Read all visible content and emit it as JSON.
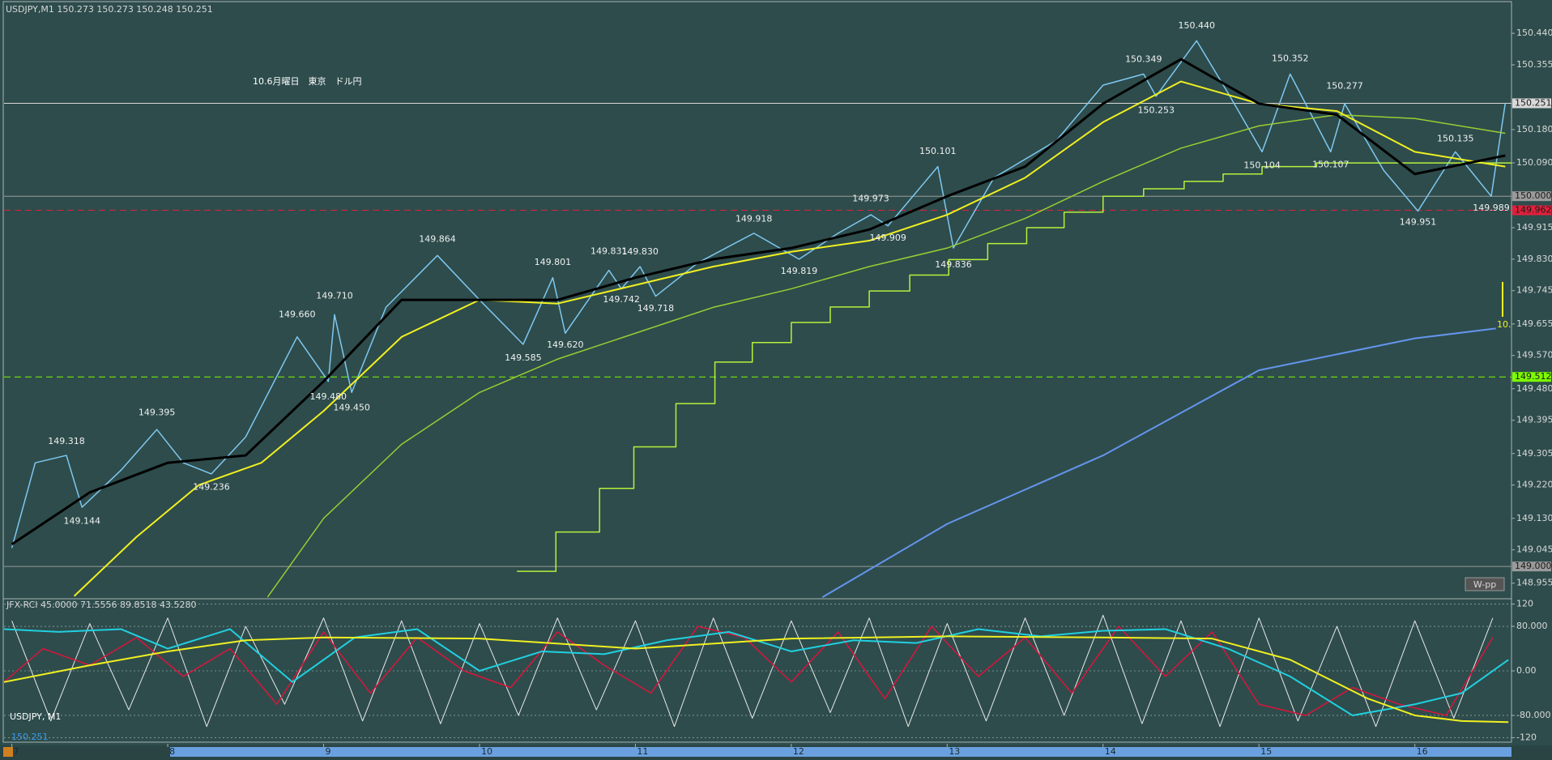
{
  "chart_data": [
    {
      "type": "line",
      "title": "10.6月曜日　東京　ドル円",
      "subtitle": "USDJPY,M1  150.273 150.273 150.248 150.251",
      "symbol_label": "USDJPY, M1",
      "last_price": 150.251,
      "pivot_label": "W-pp",
      "note": "10.",
      "xlim": [
        6.95,
        16.62
      ],
      "xticks": [
        7,
        8,
        9,
        10,
        11,
        12,
        13,
        14,
        15,
        16
      ],
      "ylim": [
        148.915,
        150.53
      ],
      "yticks": [
        {
          "value": 150.44,
          "label": "150.440"
        },
        150.355,
        {
          "value": 150.18,
          "label": "150.180"
        },
        {
          "value": 150.09,
          "label": "150.090"
        },
        149.915,
        {
          "value": 149.83,
          "label": "149.830"
        },
        149.745,
        149.655,
        {
          "value": 149.57,
          "label": "149.570"
        },
        {
          "value": 149.48,
          "label": "149.480"
        },
        149.395,
        149.305,
        {
          "value": 149.22,
          "label": "149.220"
        },
        {
          "value": 149.13,
          "label": "149.130"
        },
        149.045,
        148.955
      ],
      "hlines": [
        {
          "value": 150.251,
          "color": "#d8d8d8",
          "dash": false
        },
        {
          "value": 150,
          "label": "150.000",
          "color": "#9a9a9a",
          "dash": false
        },
        {
          "value": 149.962,
          "color": "#e0203c",
          "dash": true
        },
        {
          "value": 149.512,
          "color": "#7cfc00",
          "dash": true
        },
        {
          "value": 149,
          "label": "149.000",
          "color": "#9a9a9a",
          "dash": false
        }
      ],
      "series": [
        {
          "color": "#7ec8f0",
          "line_width": 1.5,
          "x": [
            7.0,
            7.15,
            7.35,
            7.45,
            7.7,
            7.93,
            8.1,
            8.28,
            8.5,
            8.83,
            9.03,
            9.07,
            9.18,
            9.4,
            9.73,
            10.0,
            10.28,
            10.47,
            10.55,
            10.83,
            10.91,
            11.03,
            11.13,
            11.4,
            11.76,
            12.05,
            12.3,
            12.51,
            12.62,
            12.94,
            13.04,
            13.3,
            13.7,
            14.0,
            14.26,
            14.34,
            14.6,
            14.8,
            15.02,
            15.2,
            15.46,
            15.55,
            15.8,
            16.02,
            16.26,
            16.49,
            16.58
          ],
          "values": [
            149.05,
            149.28,
            149.3,
            149.16,
            149.26,
            149.37,
            149.28,
            149.25,
            149.35,
            149.62,
            149.5,
            149.68,
            149.47,
            149.7,
            149.84,
            149.72,
            149.6,
            149.78,
            149.63,
            149.8,
            149.75,
            149.81,
            149.73,
            149.82,
            149.9,
            149.83,
            149.9,
            149.95,
            149.92,
            150.08,
            149.86,
            150.05,
            150.15,
            150.3,
            150.33,
            150.27,
            150.42,
            150.28,
            150.12,
            150.33,
            150.12,
            150.25,
            150.07,
            149.96,
            150.12,
            150.0,
            150.251
          ]
        },
        {
          "color": "#9acd32",
          "line_width": 1.5,
          "x": [
            8.64,
            9.0,
            9.5,
            10.0,
            10.5,
            11.0,
            11.5,
            12.0,
            12.5,
            13.0,
            13.5,
            14.0,
            14.5,
            15.0,
            15.5,
            16.0,
            16.58
          ],
          "values": [
            148.917,
            149.13,
            149.33,
            149.47,
            149.56,
            149.63,
            149.7,
            149.75,
            149.81,
            149.86,
            149.94,
            150.04,
            150.13,
            150.19,
            150.22,
            150.21,
            150.17
          ]
        },
        {
          "color": "#b6f03c",
          "line_width": 1.5,
          "step": true,
          "x": [
            10.24,
            10.49,
            10.77,
            10.99,
            11.26,
            11.51,
            11.75,
            12.0,
            12.25,
            12.5,
            12.76,
            13.01,
            13.26,
            13.51,
            13.75,
            14.0,
            14.26,
            14.52,
            14.77,
            15.02,
            15.37
          ],
          "values": [
            148.987,
            149.093,
            149.211,
            149.323,
            149.44,
            149.552,
            149.605,
            149.659,
            149.701,
            149.744,
            149.787,
            149.829,
            149.872,
            149.915,
            149.957,
            150.0,
            150.02,
            150.04,
            150.06,
            150.08,
            150.09
          ]
        },
        {
          "color": "#6495ed",
          "line_width": 2,
          "x": [
            12.2,
            13.0,
            14.0,
            15.0,
            16.0,
            16.52
          ],
          "values": [
            148.917,
            149.115,
            149.3,
            149.53,
            149.616,
            149.643
          ]
        },
        {
          "color": "#f0f020",
          "line_width": 2,
          "x": [
            7.4,
            7.8,
            8.2,
            8.6,
            9.0,
            9.5,
            10.0,
            10.5,
            11.0,
            11.5,
            12.0,
            12.5,
            13.0,
            13.5,
            14.0,
            14.5,
            15.0,
            15.5,
            16.0,
            16.58
          ],
          "values": [
            148.92,
            149.08,
            149.22,
            149.28,
            149.42,
            149.62,
            149.72,
            149.71,
            149.76,
            149.81,
            149.85,
            149.88,
            149.95,
            150.05,
            150.2,
            150.31,
            150.25,
            150.23,
            150.12,
            150.08
          ]
        },
        {
          "color": "#000000",
          "line_width": 3,
          "x": [
            7.0,
            7.5,
            8.0,
            8.5,
            9.0,
            9.5,
            10.0,
            10.5,
            11.0,
            11.5,
            12.0,
            12.5,
            13.0,
            13.5,
            14.0,
            14.5,
            15.0,
            15.5,
            16.0,
            16.58
          ],
          "values": [
            149.06,
            149.2,
            149.28,
            149.3,
            149.5,
            149.72,
            149.72,
            149.72,
            149.78,
            149.83,
            149.86,
            149.91,
            150.0,
            150.08,
            150.25,
            150.37,
            150.25,
            150.22,
            150.06,
            150.11
          ]
        }
      ],
      "price_labels": {
        "x": [
          7.35,
          7.45,
          7.93,
          8.28,
          8.83,
          9.07,
          9.03,
          9.18,
          9.73,
          10.28,
          10.47,
          10.55,
          10.83,
          10.91,
          11.03,
          11.13,
          11.76,
          12.05,
          12.51,
          12.62,
          12.94,
          13.04,
          14.26,
          14.34,
          14.6,
          15.02,
          15.2,
          15.46,
          15.55,
          16.26,
          16.02,
          16.49
        ],
        "values": [
          149.318,
          149.144,
          149.395,
          149.236,
          149.66,
          149.71,
          149.48,
          149.45,
          149.864,
          149.585,
          149.801,
          149.62,
          149.831,
          149.742,
          149.83,
          149.718,
          149.918,
          149.819,
          149.973,
          149.909,
          150.101,
          149.836,
          150.349,
          150.253,
          150.44,
          150.104,
          150.352,
          150.107,
          150.277,
          150.135,
          149.951,
          149.989
        ],
        "value_labels": [
          "149.318",
          "149.144",
          "149.395",
          "149.236",
          "149.660",
          "149.710",
          "149.480",
          "149.450",
          "149.864",
          "149.585",
          "149.801",
          "149.620",
          "149.831",
          "149.742",
          "149.830",
          "149.718",
          "149.918",
          "149.819",
          "149.973",
          "149.909",
          "150.101",
          "149.836",
          "150.349",
          "150.253",
          "150.440",
          "150.104",
          "150.352",
          "150.107",
          "150.277",
          "150.135",
          "149.951",
          "149.989"
        ]
      }
    },
    {
      "type": "line",
      "title": "JFX-RCI 45.0000 71.5556 89.8518 43.5280",
      "xlim": [
        6.95,
        16.62
      ],
      "ylim": [
        -131,
        131
      ],
      "yticks": [
        120,
        {
          "value": 80,
          "label": "80.000"
        },
        {
          "value": 0,
          "label": "0.00"
        },
        {
          "value": -80,
          "label": "-80.000"
        },
        -120
      ],
      "grid": true,
      "series": [
        {
          "color": "#e8e8e8",
          "line_width": 1,
          "x": [
            7,
            7.25,
            7.5,
            7.75,
            8,
            8.25,
            8.5,
            8.75,
            9,
            9.25,
            9.5,
            9.75,
            10,
            10.25,
            10.5,
            10.75,
            11,
            11.25,
            11.5,
            11.75,
            12,
            12.25,
            12.5,
            12.75,
            13,
            13.25,
            13.5,
            13.75,
            14,
            14.25,
            14.5,
            14.75,
            15,
            15.25,
            15.5,
            15.75,
            16,
            16.25,
            16.5
          ],
          "values": [
            90,
            -90,
            85,
            -70,
            95,
            -100,
            80,
            -60,
            95,
            -90,
            90,
            -95,
            85,
            -80,
            95,
            -70,
            90,
            -100,
            95,
            -85,
            90,
            -75,
            95,
            -100,
            85,
            -90,
            95,
            -80,
            100,
            -95,
            90,
            -100,
            95,
            -90,
            80,
            -100,
            90,
            -85,
            95
          ]
        },
        {
          "color": "#dc143c",
          "line_width": 1.5,
          "x": [
            6.95,
            7.2,
            7.5,
            7.8,
            8.1,
            8.4,
            8.7,
            9.0,
            9.3,
            9.6,
            9.9,
            10.2,
            10.5,
            10.8,
            11.1,
            11.4,
            11.7,
            12.0,
            12.3,
            12.6,
            12.9,
            13.2,
            13.5,
            13.8,
            14.1,
            14.4,
            14.7,
            15.0,
            15.3,
            15.6,
            15.9,
            16.2,
            16.5
          ],
          "values": [
            -20,
            40,
            10,
            60,
            -10,
            40,
            -60,
            70,
            -40,
            60,
            0,
            -30,
            70,
            10,
            -40,
            80,
            60,
            -20,
            70,
            -50,
            80,
            -10,
            60,
            -40,
            80,
            -10,
            70,
            -60,
            -80,
            -30,
            -60,
            -80,
            60
          ]
        },
        {
          "color": "#20d0e0",
          "line_width": 2,
          "x": [
            6.95,
            7.3,
            7.7,
            8.0,
            8.4,
            8.8,
            9.2,
            9.6,
            10.0,
            10.4,
            10.8,
            11.2,
            11.6,
            12.0,
            12.4,
            12.8,
            13.2,
            13.6,
            14.0,
            14.4,
            14.8,
            15.2,
            15.6,
            16.0,
            16.3,
            16.6
          ],
          "values": [
            75,
            70,
            75,
            40,
            75,
            -20,
            60,
            75,
            0,
            35,
            30,
            55,
            70,
            35,
            55,
            50,
            75,
            62,
            72,
            75,
            40,
            -10,
            -80,
            -60,
            -40,
            20
          ]
        },
        {
          "color": "#f0f020",
          "line_width": 2,
          "x": [
            6.95,
            7.5,
            8.0,
            8.5,
            9.0,
            10.0,
            11.0,
            12.0,
            13.0,
            14.0,
            14.7,
            15.2,
            15.7,
            16.0,
            16.3,
            16.6
          ],
          "values": [
            -20,
            10,
            35,
            55,
            60,
            58,
            40,
            58,
            62,
            60,
            58,
            20,
            -50,
            -80,
            -90,
            -92
          ]
        }
      ]
    }
  ]
}
